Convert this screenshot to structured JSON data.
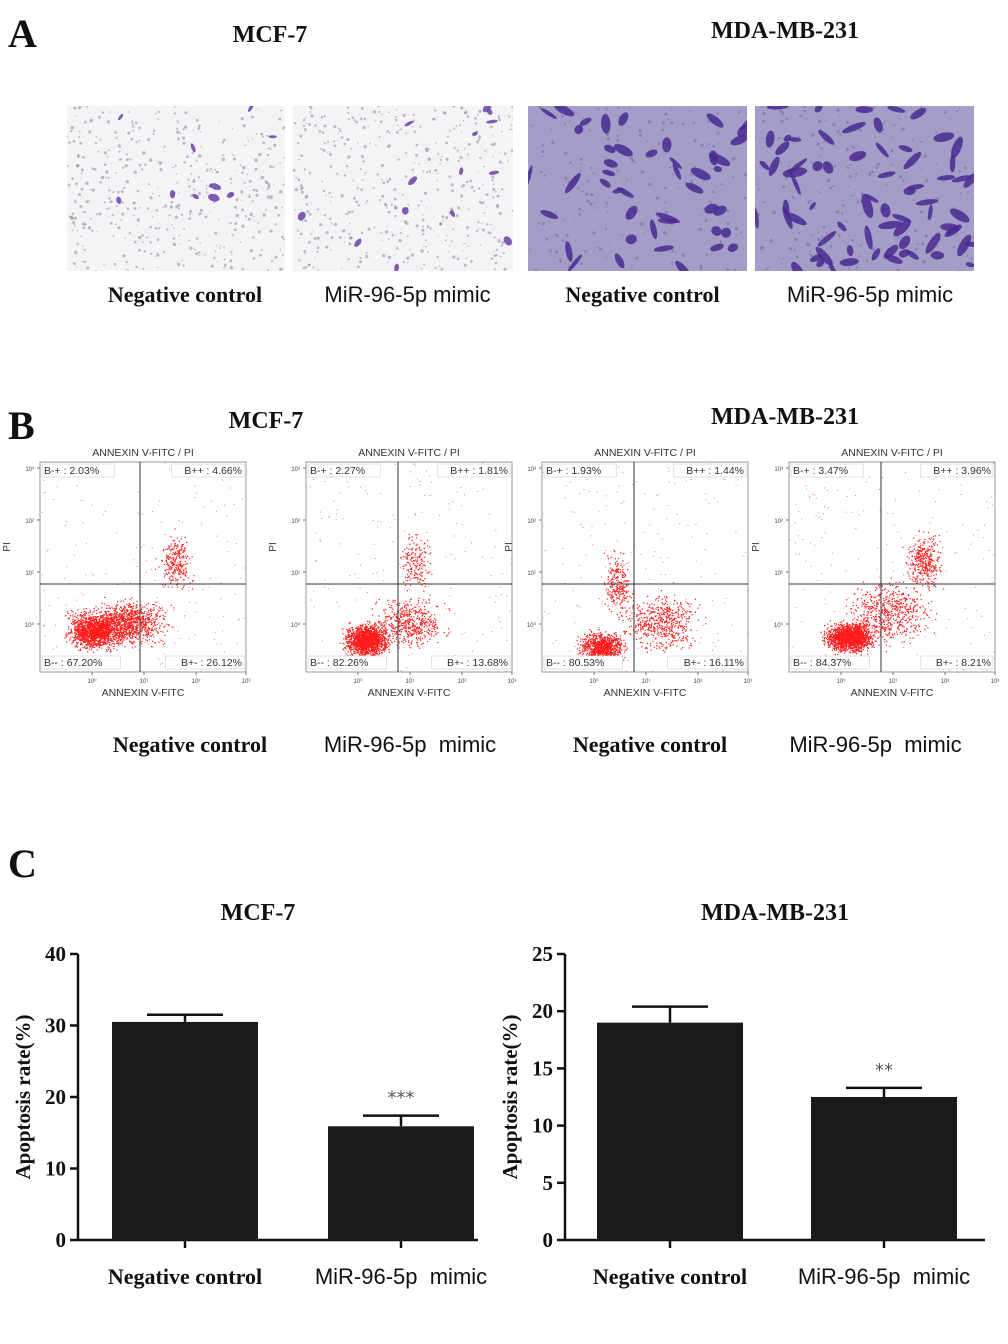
{
  "panelA": {
    "letter": "A",
    "titles": [
      "MCF-7",
      "MDA-MB-231"
    ],
    "captions": [
      "Negative control",
      "MiR-96-5p mimic",
      "Negative control",
      "MiR-96-5p mimic"
    ]
  },
  "panelB": {
    "letter": "B",
    "titles": [
      "MCF-7",
      "MDA-MB-231"
    ],
    "captions": [
      "Negative control",
      "MiR-96-5p  mimic",
      "Negative control",
      "MiR-96-5p  mimic"
    ],
    "plot_title": "ANNEXIN V-FITC / PI",
    "xlabel": "ANNEXIN V-FITC",
    "ylabel": "PI",
    "plots": [
      {
        "ul": "B-+ : 2.03%",
        "ur": "B++ : 4.66%",
        "ll": "B-- : 67.20%",
        "lr": "B+- : 26.12%"
      },
      {
        "ul": "B-+ : 2.27%",
        "ur": "B++ : 1.81%",
        "ll": "B-- : 82.26%",
        "lr": "B+- : 13.68%"
      },
      {
        "ul": "B-+ : 1.93%",
        "ur": "B++ : 1.44%",
        "ll": "B-- : 80.53%",
        "lr": "B+- : 16.11%"
      },
      {
        "ul": "B-+ : 3.47%",
        "ur": "B++ : 3.96%",
        "ll": "B-- : 84.37%",
        "lr": "B+- : 8.21%"
      }
    ]
  },
  "panelC": {
    "letter": "C"
  },
  "chart_data": [
    {
      "type": "bar",
      "title": "MCF-7",
      "categories": [
        "Negative control",
        "MiR-96-5p  mimic"
      ],
      "values": [
        30.5,
        15.9
      ],
      "errors": [
        1.0,
        1.5
      ],
      "significance": [
        "",
        "***"
      ],
      "ylabel": "Apoptosis rate(%)",
      "ylim": [
        0,
        40
      ],
      "yticks": [
        0,
        10,
        20,
        30,
        40
      ]
    },
    {
      "type": "bar",
      "title": "MDA-MB-231",
      "categories": [
        "Negative control",
        "MiR-96-5p  mimic"
      ],
      "values": [
        19.0,
        12.5
      ],
      "errors": [
        1.4,
        0.8
      ],
      "significance": [
        "",
        "**"
      ],
      "ylabel": "Apoptosis rate(%)",
      "ylim": [
        0,
        25
      ],
      "yticks": [
        0,
        5,
        10,
        15,
        20,
        25
      ]
    }
  ],
  "colors": {
    "bar": "#1a1a1a",
    "dots": "#ff1a1a",
    "stain": "#6a3fa8",
    "micro_light_bg": "#f4f4f6",
    "micro_dark_bg": "#a39dc8"
  }
}
